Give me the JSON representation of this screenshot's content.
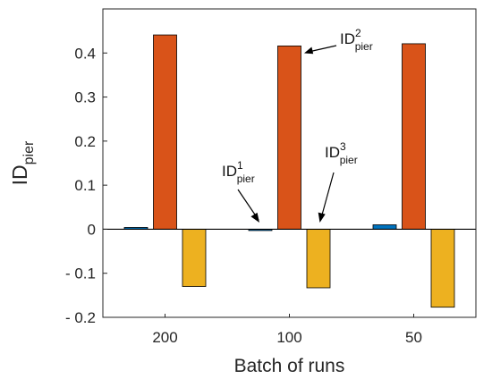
{
  "chart_data": {
    "type": "bar",
    "categories": [
      "200",
      "100",
      "50"
    ],
    "series": [
      {
        "values": [
          0.004,
          -0.003,
          0.01
        ],
        "color": "#0072BD"
      },
      {
        "values": [
          0.441,
          0.416,
          0.421
        ],
        "color": "#D95319"
      },
      {
        "values": [
          -0.13,
          -0.133,
          -0.177
        ],
        "color": "#EDB120"
      }
    ],
    "xlabel": "Batch of runs",
    "ylabel": {
      "base": "ID",
      "sub": "pier"
    },
    "ylim": [
      -0.2,
      0.5
    ],
    "yticks": [
      -0.2,
      -0.1,
      0,
      0.1,
      0.2,
      0.3,
      0.4
    ],
    "ytick_labels": [
      "- 0.2",
      "- 0.1",
      "0",
      "0.1",
      "0.2",
      "0.3",
      "0.4"
    ],
    "zero_line": true,
    "grid": false,
    "annotations": [
      {
        "base": "ID",
        "sup": "1",
        "sub": "pier",
        "target_category": "100",
        "target_series": 0
      },
      {
        "base": "ID",
        "sup": "2",
        "sub": "pier",
        "target_category": "100",
        "target_series": 1
      },
      {
        "base": "ID",
        "sup": "3",
        "sub": "pier",
        "target_category": "100",
        "target_series": 2
      }
    ]
  }
}
